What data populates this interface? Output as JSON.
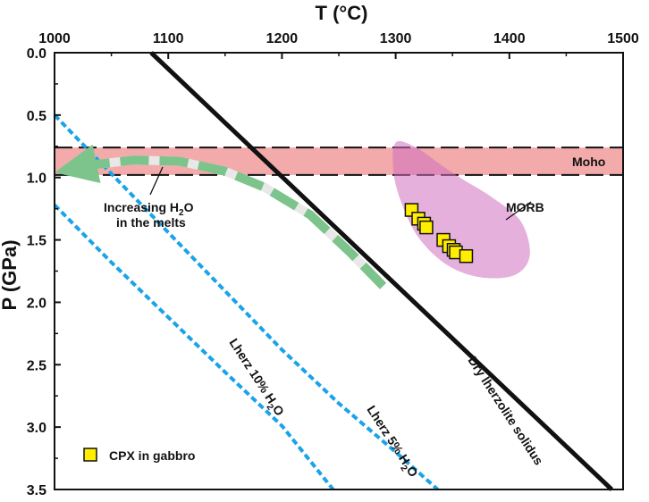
{
  "chart_data": {
    "type": "line",
    "x_axis": {
      "label": "T (°C)",
      "position": "top",
      "range": [
        1000,
        1500
      ],
      "ticks": [
        1000,
        1100,
        1200,
        1300,
        1400,
        1500
      ],
      "tick_labels": [
        "1000",
        "1100",
        "1200",
        "1300",
        "1400",
        "1500"
      ]
    },
    "y_axis": {
      "label": "P (GPa)",
      "range": [
        0.0,
        3.5
      ],
      "inverted": true,
      "ticks": [
        0.0,
        0.5,
        1.0,
        1.5,
        2.0,
        2.5,
        3.0,
        3.5
      ],
      "tick_labels": [
        "0.0",
        "0.5",
        "1.0",
        "1.5",
        "2.0",
        "2.5",
        "3.0",
        "3.5"
      ]
    },
    "grid": false,
    "moho_band": {
      "label": "Moho",
      "p_range": [
        0.76,
        0.98
      ],
      "color": "#f2aaaa",
      "line_color": "#111111"
    },
    "series": [
      {
        "name": "Dry lherzolite solidus",
        "style": "solid",
        "color": "#111111",
        "points": [
          [
            1085,
            0.0
          ],
          [
            1490,
            3.5
          ]
        ]
      },
      {
        "name": "Lherz 5% H2O",
        "style": "dashed",
        "color": "#1aa3e8",
        "points": [
          [
            1000,
            0.5
          ],
          [
            1050,
            0.97
          ],
          [
            1100,
            1.44
          ],
          [
            1150,
            1.91
          ],
          [
            1200,
            2.38
          ],
          [
            1250,
            2.81
          ],
          [
            1300,
            3.2
          ],
          [
            1337,
            3.5
          ]
        ]
      },
      {
        "name": "Lherz 10% H2O",
        "style": "dashed",
        "color": "#1aa3e8",
        "points": [
          [
            1000,
            1.22
          ],
          [
            1050,
            1.68
          ],
          [
            1100,
            2.12
          ],
          [
            1150,
            2.56
          ],
          [
            1200,
            2.99
          ],
          [
            1245,
            3.5
          ]
        ]
      }
    ],
    "trend_arrow": {
      "label": "Increasing H2O in the melts",
      "colors": [
        "#7cc48b",
        "#e8e8e8"
      ],
      "points": [
        [
          1289,
          1.87
        ],
        [
          1260,
          1.6
        ],
        [
          1225,
          1.3
        ],
        [
          1185,
          1.08
        ],
        [
          1150,
          0.95
        ],
        [
          1110,
          0.87
        ],
        [
          1070,
          0.86
        ],
        [
          1032,
          0.9
        ]
      ],
      "head_tip": [
        1000,
        0.96
      ]
    },
    "morb_field": {
      "label": "MORB",
      "color": "#d070c0",
      "outline": [
        [
          1300,
          0.72
        ],
        [
          1318,
          0.76
        ],
        [
          1340,
          0.9
        ],
        [
          1360,
          1.02
        ],
        [
          1385,
          1.16
        ],
        [
          1410,
          1.35
        ],
        [
          1418,
          1.62
        ],
        [
          1405,
          1.78
        ],
        [
          1375,
          1.8
        ],
        [
          1345,
          1.7
        ],
        [
          1320,
          1.48
        ],
        [
          1305,
          1.2
        ],
        [
          1298,
          0.95
        ]
      ]
    },
    "cpx_points": {
      "label": "CPX in gabbro",
      "marker": "square",
      "color": "#ffee00",
      "points": [
        [
          1314,
          1.26
        ],
        [
          1320,
          1.33
        ],
        [
          1325,
          1.37
        ],
        [
          1327,
          1.4
        ],
        [
          1342,
          1.5
        ],
        [
          1347,
          1.55
        ],
        [
          1351,
          1.58
        ],
        [
          1353,
          1.6
        ],
        [
          1362,
          1.63
        ]
      ]
    },
    "annotations": {
      "moho": "Moho",
      "morb": "MORB",
      "increasing_h2o_line1": "Increasing H",
      "increasing_h2o_sub": "2",
      "increasing_h2o_line1_end": "O",
      "increasing_h2o_line2": "in the melts",
      "lherz10_pre": "Lherz 10% H",
      "lherz10_sub": "2",
      "lherz10_post": "O",
      "lherz5_pre": "Lherz 5% H",
      "lherz5_sub": "2",
      "lherz5_post": "O",
      "dry_solidus": "Dry lherzolite solidus",
      "legend_cpx": "CPX in gabbro"
    }
  }
}
